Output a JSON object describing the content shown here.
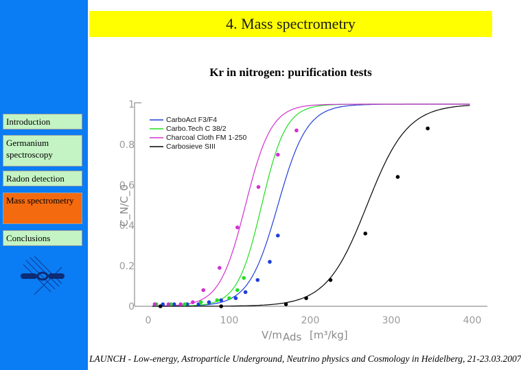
{
  "header": {
    "title": "4. Mass spectrometry"
  },
  "sidebar": {
    "items": [
      {
        "label": "Introduction",
        "active": false
      },
      {
        "label": "Germanium spectroscopy",
        "active": false
      },
      {
        "label": "Radon detection",
        "active": false
      },
      {
        "label": "Mass spectrometry",
        "active": true
      },
      {
        "label": "Conclusions",
        "active": false
      }
    ]
  },
  "footer": {
    "text": "LAUNCH - Low-energy, Astroparticle Underground, Neutrino physics and Cosmology in Heidelberg, 21-23.03.2007"
  },
  "colors": {
    "sidebar": "#0a7cf4",
    "title_bar": "#ffff00",
    "nav_item": "#c4f3c4",
    "nav_active": "#f46a0f"
  },
  "chart_data": {
    "type": "line",
    "title": "Kr in nitrogen: purification tests",
    "xlabel_main": "V/m",
    "xlabel_sub": "Ads",
    "xlabel_unit": "[m³/kg]",
    "ylabel": "C_N/C_0",
    "xlim": [
      -20,
      400
    ],
    "ylim": [
      0,
      1
    ],
    "x_ticks": [
      0,
      100,
      200,
      300,
      400
    ],
    "y_ticks": [
      0,
      0.2,
      0.4,
      0.6,
      0.8,
      1
    ],
    "y_tick_labels": [
      "0",
      "0.2",
      "0.4",
      "0.6",
      "0.8",
      "1"
    ],
    "legend_position": "top-left",
    "series": [
      {
        "name": "CarboAct F3/F4",
        "color": "#1f3fd8",
        "curve": {
          "center": 160,
          "width": 18
        },
        "points": [
          [
            8,
            0.01
          ],
          [
            18,
            0.01
          ],
          [
            32,
            0.01
          ],
          [
            48,
            0.01
          ],
          [
            62,
            0.01
          ],
          [
            75,
            0.02
          ],
          [
            90,
            0.03
          ],
          [
            108,
            0.04
          ],
          [
            120,
            0.07
          ],
          [
            135,
            0.13
          ],
          [
            150,
            0.22
          ],
          [
            160,
            0.35
          ]
        ]
      },
      {
        "name": "Carbo.Tech C 38/2",
        "color": "#22dd22",
        "curve": {
          "center": 140,
          "width": 15
        },
        "points": [
          [
            10,
            0.01
          ],
          [
            28,
            0.01
          ],
          [
            45,
            0.01
          ],
          [
            65,
            0.02
          ],
          [
            85,
            0.03
          ],
          [
            100,
            0.04
          ],
          [
            110,
            0.08
          ],
          [
            118,
            0.14
          ]
        ]
      },
      {
        "name": "Charcoal Cloth FM 1-250",
        "color": "#d030d0",
        "curve": {
          "center": 120,
          "width": 16
        },
        "points": [
          [
            8,
            0.01
          ],
          [
            25,
            0.01
          ],
          [
            40,
            0.01
          ],
          [
            55,
            0.02
          ],
          [
            68,
            0.08
          ],
          [
            88,
            0.19
          ],
          [
            110,
            0.39
          ],
          [
            136,
            0.59
          ],
          [
            160,
            0.75
          ],
          [
            183,
            0.87
          ]
        ]
      },
      {
        "name": "Carbosieve SIII",
        "color": "#000000",
        "curve": {
          "center": 270,
          "width": 25
        },
        "points": [
          [
            15,
            0.0
          ],
          [
            90,
            0.0
          ],
          [
            170,
            0.01
          ],
          [
            195,
            0.04
          ],
          [
            225,
            0.13
          ],
          [
            268,
            0.36
          ],
          [
            308,
            0.64
          ],
          [
            345,
            0.88
          ]
        ]
      }
    ]
  }
}
